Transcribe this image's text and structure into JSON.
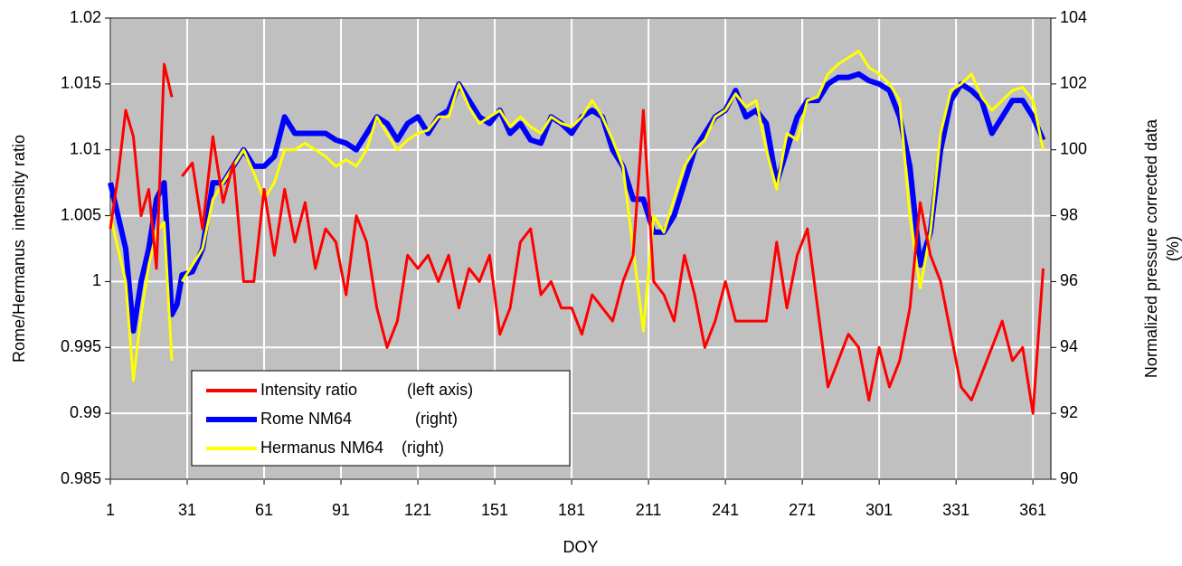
{
  "chart_data": {
    "type": "line",
    "xlabel": "DOY",
    "ylabel": "Rome/Hermanus  intensity ratio",
    "y2label": [
      "Normalized pressure corrected data",
      "(%)"
    ],
    "xlim": [
      1,
      368
    ],
    "xticks": [
      1,
      31,
      61,
      91,
      121,
      151,
      181,
      211,
      241,
      271,
      301,
      331,
      361
    ],
    "ylim": [
      0.985,
      1.02
    ],
    "yticks": [
      0.985,
      0.99,
      0.995,
      1,
      1.005,
      1.01,
      1.015,
      1.02
    ],
    "y2lim": [
      90,
      104
    ],
    "y2ticks": [
      90,
      92,
      94,
      96,
      98,
      100,
      102,
      104
    ],
    "grid": true,
    "legend": "lower left",
    "x": [
      1,
      4,
      7,
      10,
      13,
      16,
      19,
      22,
      25,
      27,
      29,
      33,
      37,
      41,
      45,
      49,
      53,
      57,
      61,
      65,
      69,
      73,
      77,
      81,
      85,
      89,
      93,
      97,
      101,
      105,
      109,
      113,
      117,
      121,
      125,
      129,
      133,
      137,
      141,
      145,
      149,
      153,
      157,
      161,
      165,
      169,
      173,
      177,
      181,
      185,
      189,
      193,
      197,
      201,
      205,
      209,
      213,
      217,
      221,
      225,
      229,
      233,
      237,
      241,
      245,
      249,
      253,
      257,
      261,
      265,
      269,
      273,
      277,
      281,
      285,
      289,
      293,
      297,
      301,
      305,
      309,
      313,
      317,
      321,
      325,
      329,
      333,
      337,
      341,
      345,
      349,
      353,
      357,
      361,
      365
    ],
    "series": [
      {
        "name": "Rome NM64              (right)",
        "color": "#0000ff",
        "axis": "y2",
        "values": [
          99,
          98,
          97,
          94.5,
          96,
          97,
          98.5,
          99,
          95,
          95.3,
          96.2,
          96.3,
          97,
          99,
          99,
          99.5,
          100,
          99.5,
          99.5,
          99.8,
          101,
          100.5,
          100.5,
          100.5,
          100.5,
          100.3,
          100.2,
          100,
          100.5,
          101,
          100.8,
          100.3,
          100.8,
          101,
          100.5,
          101,
          101.2,
          102,
          101.5,
          101,
          100.8,
          101.2,
          100.5,
          100.8,
          100.3,
          100.2,
          101,
          100.8,
          100.5,
          101,
          101.2,
          101,
          100,
          99.5,
          98.5,
          98.5,
          97.5,
          97.5,
          98,
          99,
          100,
          100.5,
          101,
          101.2,
          101.8,
          101,
          101.2,
          100.8,
          99,
          100,
          101,
          101.5,
          101.5,
          102,
          102.2,
          102.2,
          102.3,
          102.1,
          102,
          101.8,
          101,
          99.5,
          96.5,
          97.5,
          100,
          101.5,
          102,
          101.8,
          101.5,
          100.5,
          101,
          101.5,
          101.5,
          101,
          100.3
        ]
      },
      {
        "name": "Hermanus NM64    (right)",
        "color": "#ffff00",
        "axis": "y2",
        "values": [
          98,
          97,
          96,
          93,
          95,
          96.5,
          97.5,
          97.8,
          93.6,
          null,
          96,
          96.5,
          97,
          98.5,
          99,
          99.5,
          100,
          99.3,
          98.5,
          99,
          100,
          100,
          100.2,
          100,
          99.8,
          99.5,
          99.7,
          99.5,
          100,
          101,
          100.5,
          100,
          100.3,
          100.5,
          100.6,
          101,
          101,
          102,
          101.3,
          100.8,
          101,
          101.2,
          100.7,
          101,
          100.7,
          100.5,
          101,
          100.8,
          100.7,
          101,
          101.5,
          101,
          100.3,
          99.5,
          97,
          94.5,
          98,
          97.5,
          98.5,
          99.5,
          100,
          100.3,
          101,
          101.2,
          101.7,
          101.3,
          101.5,
          100,
          98.8,
          100.5,
          100.3,
          101.5,
          101.6,
          102.3,
          102.6,
          102.8,
          103,
          102.5,
          102.3,
          102,
          101.5,
          98,
          95.8,
          97.5,
          100.5,
          101.8,
          102,
          102.3,
          101.6,
          101.2,
          101.5,
          101.8,
          101.9,
          101.5,
          100
        ]
      },
      {
        "name": "Intensity ratio           (left axis)",
        "color": "#ff0000",
        "axis": "y",
        "values": [
          1.004,
          1.008,
          1.013,
          1.011,
          1.005,
          1.007,
          1.001,
          1.0165,
          1.014,
          null,
          1.008,
          1.009,
          1.004,
          1.011,
          1.006,
          1.009,
          1.0,
          1.0,
          1.007,
          1.002,
          1.007,
          1.003,
          1.006,
          1.001,
          1.004,
          1.003,
          0.999,
          1.005,
          1.003,
          0.998,
          0.995,
          0.997,
          1.002,
          1.001,
          1.002,
          1.0,
          1.002,
          0.998,
          1.001,
          1.0,
          1.002,
          0.996,
          0.998,
          1.003,
          1.004,
          0.999,
          1.0,
          0.998,
          0.998,
          0.996,
          0.999,
          0.998,
          0.997,
          1.0,
          1.002,
          1.013,
          1.0,
          0.999,
          0.997,
          1.002,
          0.999,
          0.995,
          0.997,
          1.0,
          0.997,
          0.997,
          0.997,
          0.997,
          1.003,
          0.998,
          1.002,
          1.004,
          0.998,
          0.992,
          0.994,
          0.996,
          0.995,
          0.991,
          0.995,
          0.992,
          0.994,
          0.998,
          1.006,
          1.002,
          1.0,
          0.996,
          0.992,
          0.991,
          0.993,
          0.995,
          0.997,
          0.994,
          0.995,
          0.99,
          1.001
        ]
      }
    ]
  }
}
